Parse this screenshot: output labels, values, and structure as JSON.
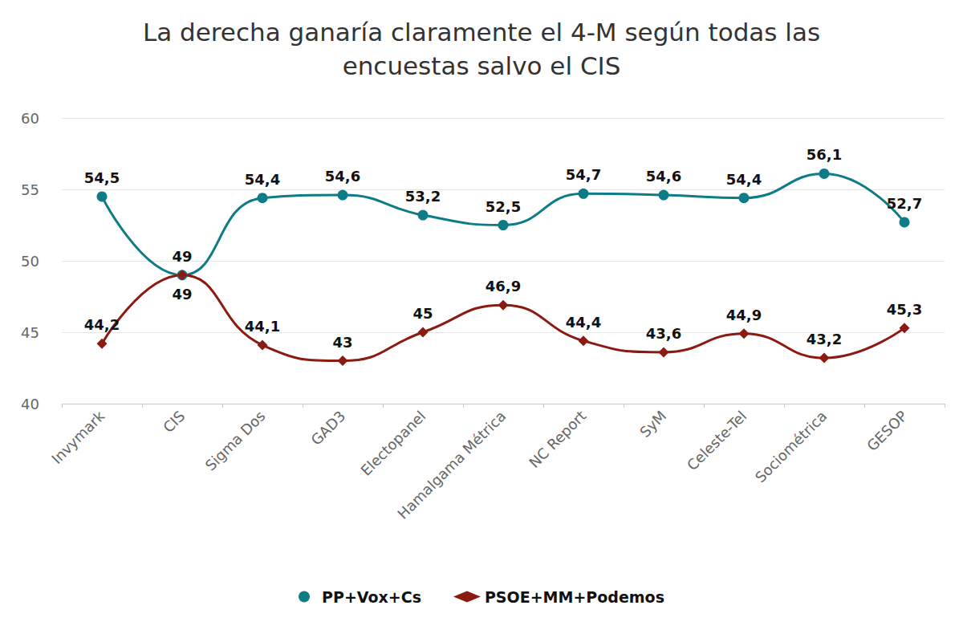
{
  "chart_data": {
    "type": "line",
    "title": "La derecha ganaría claramente el 4-M según todas las\nencuestas salvo el CIS",
    "categories": [
      "Invymark",
      "CIS",
      "Sigma Dos",
      "GAD3",
      "Electopanel",
      "Hamalgama Métrica",
      "NC Report",
      "SyM",
      "Celeste-Tel",
      "Sociométrica",
      "GESOP"
    ],
    "series": [
      {
        "name": "PP+Vox+Cs",
        "color": "#0e7c86",
        "marker": "circle",
        "values": [
          54.5,
          49,
          54.4,
          54.6,
          53.2,
          52.5,
          54.7,
          54.6,
          54.4,
          56.1,
          52.7
        ],
        "value_labels": [
          "54,5",
          "49",
          "54,4",
          "54,6",
          "53,2",
          "52,5",
          "54,7",
          "54,6",
          "54,4",
          "56,1",
          "52,7"
        ]
      },
      {
        "name": "PSOE+MM+Podemos",
        "color": "#8b1a10",
        "marker": "diamond",
        "values": [
          44.2,
          49,
          44.1,
          43,
          45,
          46.9,
          44.4,
          43.6,
          44.9,
          43.2,
          45.3
        ],
        "value_labels": [
          "44,2",
          "49",
          "44,1",
          "43",
          "45",
          "46,9",
          "44,4",
          "43,6",
          "44,9",
          "43,2",
          "45,3"
        ]
      }
    ],
    "ylim": [
      40,
      60
    ],
    "yticks": [
      40,
      45,
      50,
      55,
      60
    ],
    "grid": true,
    "legend": "bottom",
    "data_labels": true
  }
}
